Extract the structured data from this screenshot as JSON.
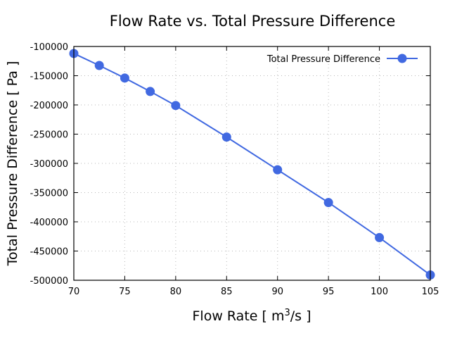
{
  "chart_data": {
    "type": "line",
    "title": "Flow Rate vs. Total Pressure Difference",
    "xlabel": "Flow Rate [ m",
    "xlabel_sup": "3",
    "xlabel_tail": "/s ]",
    "ylabel": "Total Pressure Difference [ Pa ]",
    "xlim": [
      70,
      105
    ],
    "ylim": [
      -500000,
      -100000
    ],
    "xticks": [
      70,
      75,
      80,
      85,
      90,
      95,
      100,
      105
    ],
    "xtick_labels": [
      "70",
      "75",
      "80",
      "85",
      "90",
      "95",
      "100",
      "105"
    ],
    "yticks": [
      -100000,
      -150000,
      -200000,
      -250000,
      -300000,
      -350000,
      -400000,
      -450000,
      -500000
    ],
    "ytick_labels": [
      "-100000",
      "-150000",
      "-200000",
      "-250000",
      "-300000",
      "-350000",
      "-400000",
      "-450000",
      "-500000"
    ],
    "grid": true,
    "legend_position": "top-right",
    "series": [
      {
        "name": "Total Pressure Difference",
        "color": "#4169e1",
        "marker": "circle",
        "x": [
          70,
          72.5,
          75,
          77.5,
          80,
          85,
          90,
          95,
          100,
          105
        ],
        "y": [
          -112000,
          -132500,
          -154000,
          -177000,
          -201000,
          -255000,
          -311000,
          -367000,
          -427000,
          -491000
        ]
      }
    ]
  }
}
